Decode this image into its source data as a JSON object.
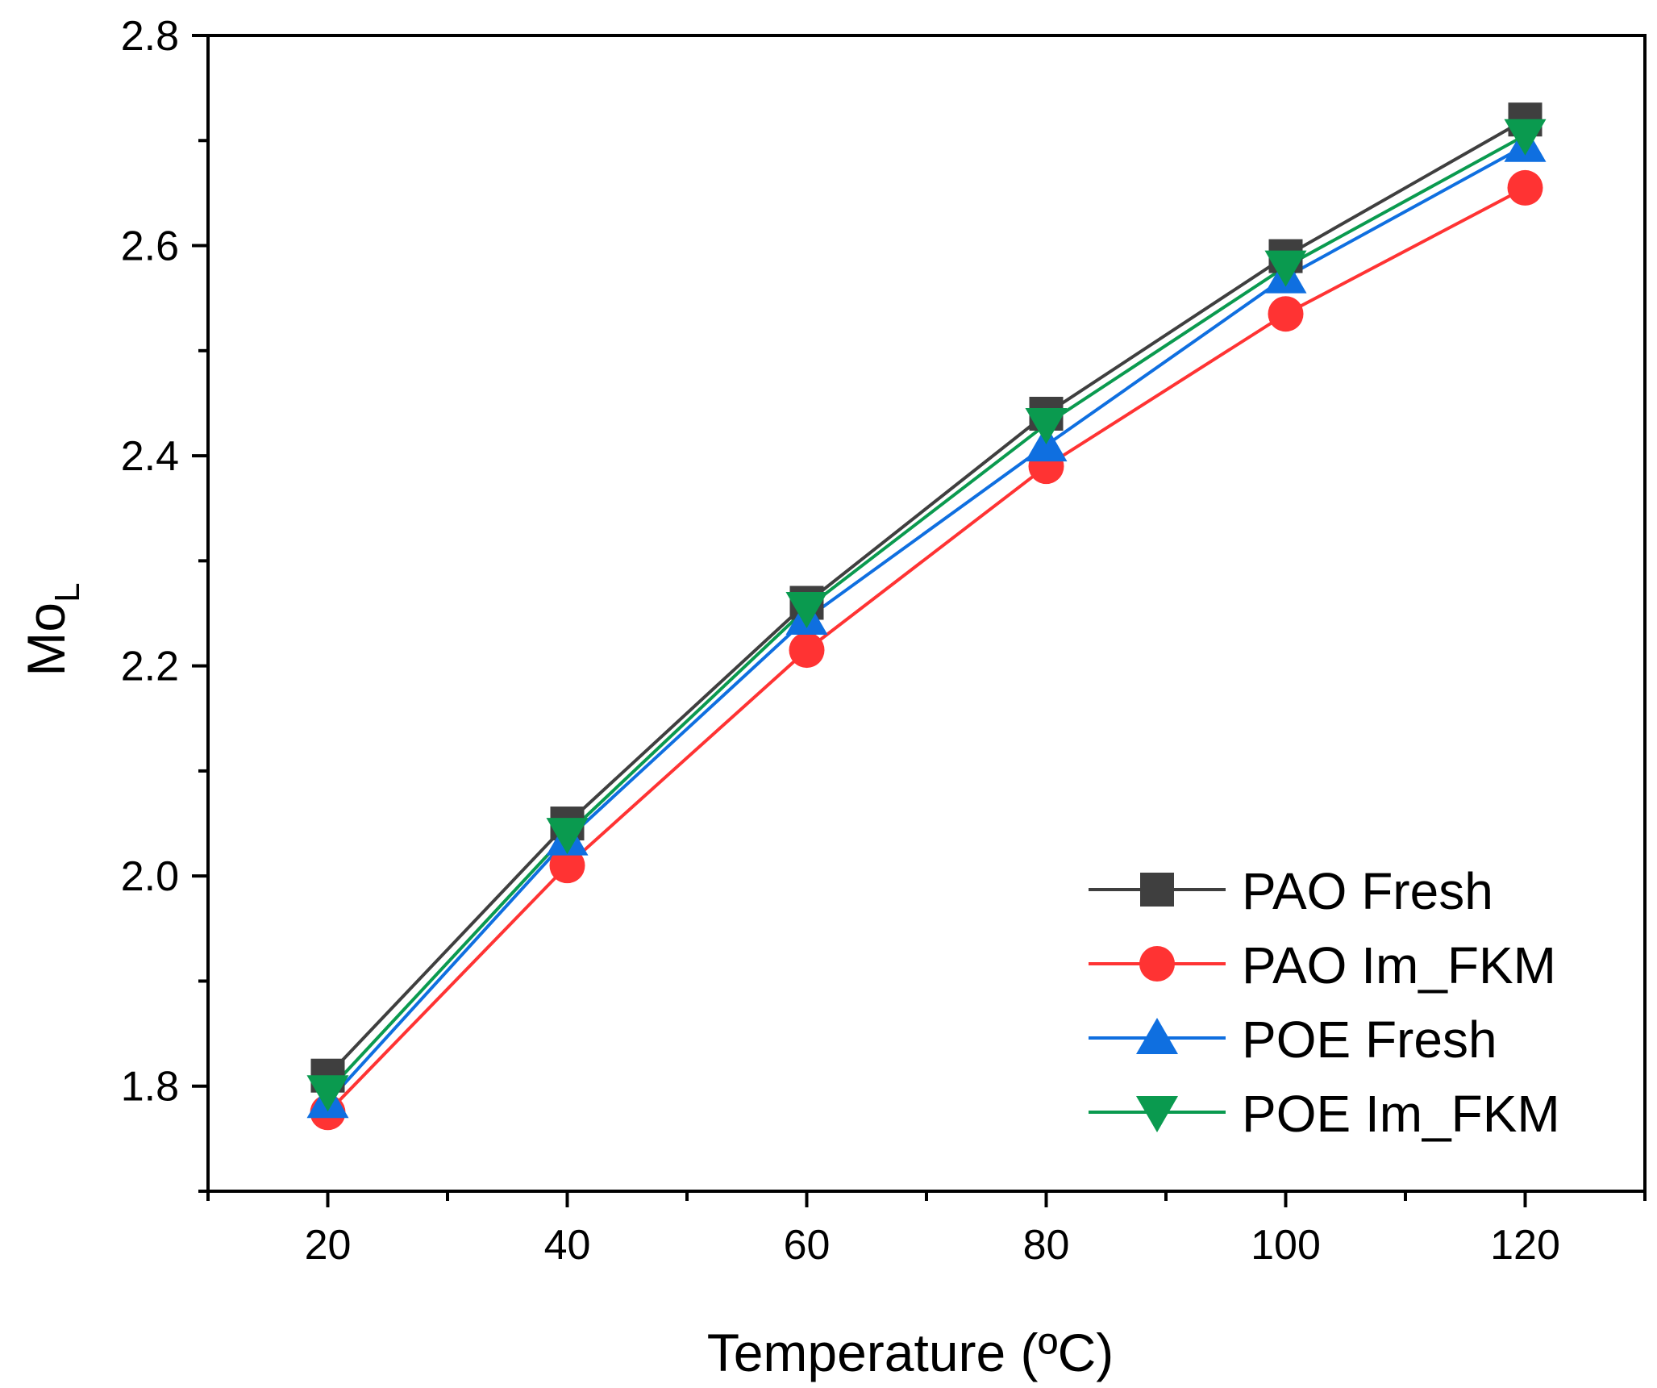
{
  "chart_data": {
    "type": "line",
    "title": "",
    "xlabel": "Temperature (ºC)",
    "ylabel": {
      "main": "Mo",
      "subscript": "L"
    },
    "x": [
      20,
      40,
      60,
      80,
      100,
      120
    ],
    "xlim": [
      10,
      130
    ],
    "ylim": [
      1.7,
      2.8
    ],
    "x_major_ticks": [
      20,
      40,
      60,
      80,
      100,
      120
    ],
    "x_minor_ticks": [
      10,
      30,
      50,
      70,
      90,
      110,
      130
    ],
    "x_tick_labels": [
      "20",
      "40",
      "60",
      "80",
      "100",
      "120"
    ],
    "y_major_ticks": [
      1.8,
      2.0,
      2.2,
      2.4,
      2.6,
      2.8
    ],
    "y_minor_ticks": [
      1.7,
      1.9,
      2.1,
      2.3,
      2.5,
      2.7
    ],
    "y_tick_labels": [
      "1.8",
      "2.0",
      "2.2",
      "2.4",
      "2.6",
      "2.8"
    ],
    "grid": false,
    "legend_position": "bottom-right",
    "series": [
      {
        "name": "PAO Fresh",
        "marker": "square",
        "color": "#3f3f3f",
        "line_color": "#3f3f3f",
        "values": [
          1.81,
          2.05,
          2.26,
          2.44,
          2.59,
          2.72
        ]
      },
      {
        "name": "PAO Im_FKM",
        "marker": "circle",
        "color": "#ff3333",
        "line_color": "#ff3333",
        "values": [
          1.775,
          2.01,
          2.215,
          2.39,
          2.535,
          2.655
        ]
      },
      {
        "name": "POE Fresh",
        "marker": "triangle-up",
        "color": "#0f6fe0",
        "line_color": "#0f6fe0",
        "values": [
          1.785,
          2.035,
          2.245,
          2.41,
          2.57,
          2.695
        ]
      },
      {
        "name": "POE Im_FKM",
        "marker": "triangle-down",
        "color": "#0a9a4f",
        "line_color": "#0a9a4f",
        "values": [
          1.795,
          2.04,
          2.255,
          2.43,
          2.58,
          2.705
        ]
      }
    ]
  }
}
